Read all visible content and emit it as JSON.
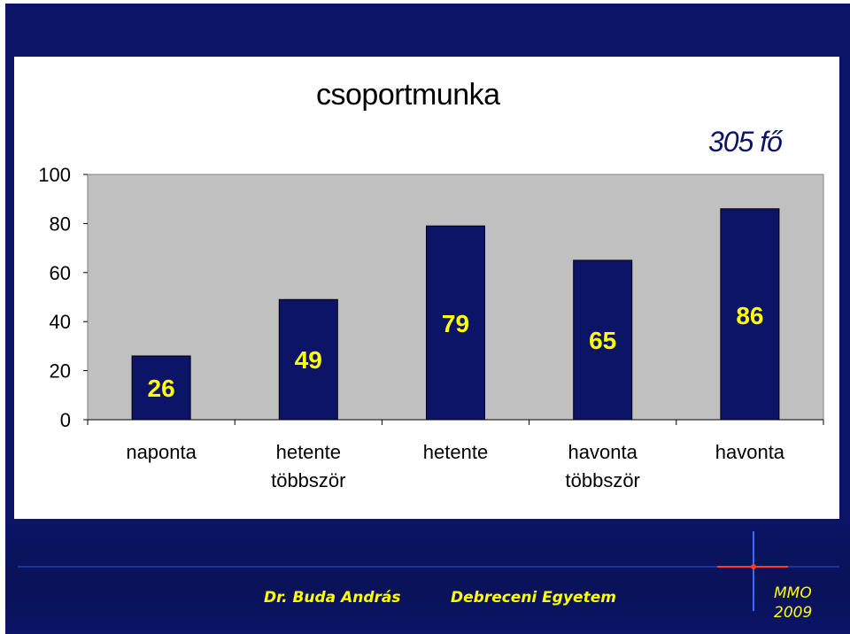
{
  "chart_data": {
    "type": "bar",
    "title": "csoportmunka",
    "annotation": "305 fő",
    "categories": [
      [
        "naponta"
      ],
      [
        "hetente",
        "többször"
      ],
      [
        "hetente"
      ],
      [
        "havonta",
        "többször"
      ],
      [
        "havonta"
      ]
    ],
    "values": [
      26,
      49,
      79,
      65,
      86
    ],
    "ylim": [
      0,
      100
    ],
    "yticks": [
      0,
      20,
      40,
      60,
      80,
      100
    ],
    "grid": false,
    "bar_color": "#0b1466",
    "plot_bg": "#c0c0c0",
    "label_color": "#ffff00"
  },
  "footer": {
    "author": "Dr. Buda András",
    "institution": "Debreceni Egyetem",
    "mark": "MMO",
    "year": "2009"
  },
  "colors": {
    "background": "#0b1466",
    "accent": "#ffff00",
    "cross": "#ff3b1f"
  }
}
